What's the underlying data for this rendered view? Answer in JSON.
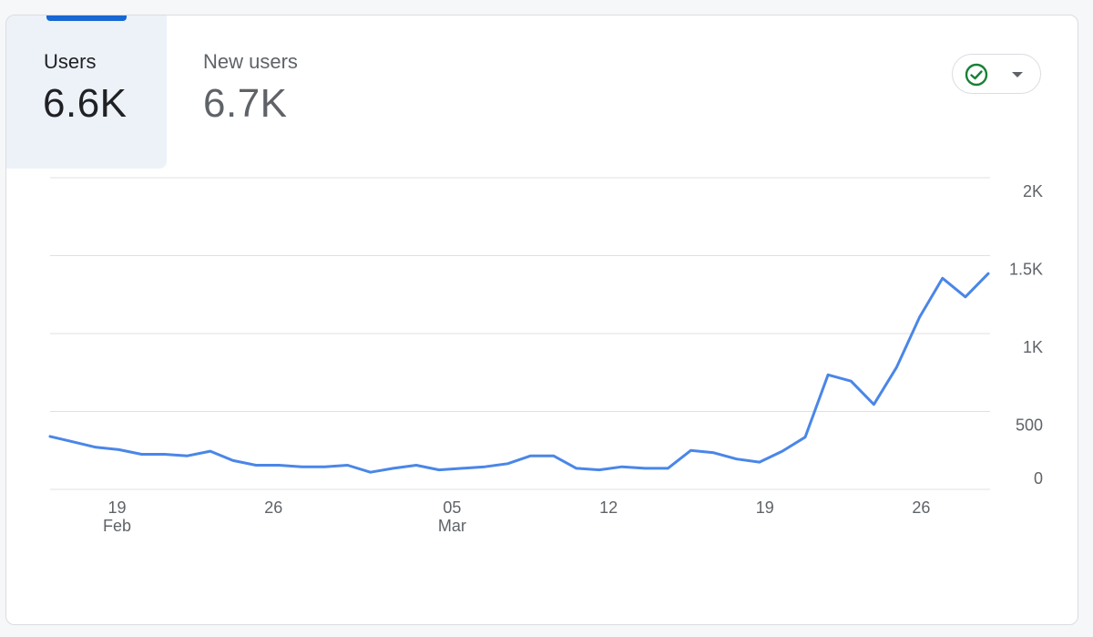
{
  "tabs": [
    {
      "label": "Users",
      "value": "6.6K",
      "active": true
    },
    {
      "label": "New users",
      "value": "6.7K",
      "active": false
    }
  ],
  "compare_button": {
    "icon": "check-circle-icon",
    "caret": "caret-down-icon"
  },
  "colors": {
    "line": "#4a86e8",
    "accent": "#1967d2",
    "check": "#188038",
    "grid": "#e0e0e0",
    "active_tab_bg": "#edf2f9"
  },
  "chart_data": {
    "type": "line",
    "x_start": "2024-02-16",
    "x_end": "2024-03-29",
    "x_tick_labels": [
      {
        "date": "2024-02-19",
        "day": "19",
        "month": "Feb"
      },
      {
        "date": "2024-02-26",
        "day": "26",
        "month": ""
      },
      {
        "date": "2024-03-05",
        "day": "05",
        "month": "Mar"
      },
      {
        "date": "2024-03-12",
        "day": "12",
        "month": ""
      },
      {
        "date": "2024-03-19",
        "day": "19",
        "month": ""
      },
      {
        "date": "2024-03-26",
        "day": "26",
        "month": ""
      }
    ],
    "y_ticks": [
      {
        "value": 0,
        "label": "0"
      },
      {
        "value": 500,
        "label": "500"
      },
      {
        "value": 1000,
        "label": "1K"
      },
      {
        "value": 1500,
        "label": "1.5K"
      },
      {
        "value": 2000,
        "label": "2K"
      }
    ],
    "ylim": [
      0,
      2000
    ],
    "grid": true,
    "series": [
      {
        "values": [
          340,
          305,
          270,
          255,
          225,
          225,
          215,
          245,
          185,
          155,
          155,
          145,
          145,
          155,
          110,
          135,
          155,
          125,
          135,
          145,
          165,
          215,
          215,
          135,
          125,
          145,
          135,
          135,
          250,
          235,
          195,
          175,
          245,
          335,
          735,
          695,
          545,
          785,
          1105,
          1355,
          1235,
          1385
        ]
      }
    ]
  }
}
